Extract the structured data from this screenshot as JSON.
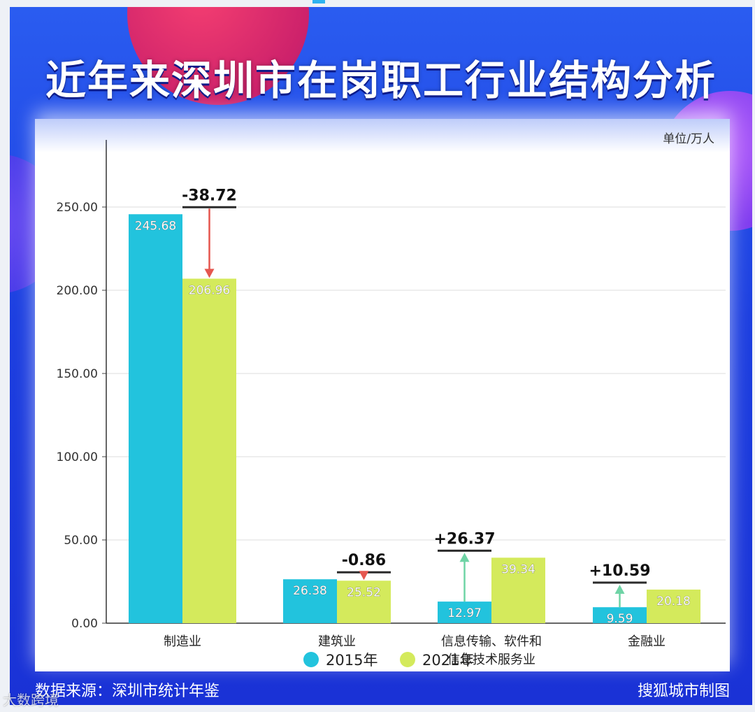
{
  "title": "近年来深圳市在岗职工行业结构分析",
  "unit_label": "单位/万人",
  "footer": {
    "source": "数据来源：深圳市统计年鉴",
    "credit": "搜狐城市制图",
    "watermark": "大数跨境"
  },
  "colors": {
    "series_2015": "#22c3dd",
    "series_2021": "#d4ea5c",
    "decrease_arrow": "#e5574f",
    "increase_arrow": "#6fd4a6",
    "background": "#1d3fe0"
  },
  "chart_data": {
    "type": "bar",
    "categories": [
      "制造业",
      "建筑业",
      "信息传输、软件和\n信息技术服务业",
      "金融业"
    ],
    "series": [
      {
        "name": "2015年",
        "values": [
          245.68,
          26.38,
          12.97,
          9.59
        ],
        "labels": [
          "245.68",
          "26.38",
          "12.97",
          "9.59"
        ]
      },
      {
        "name": "2021年",
        "values": [
          206.96,
          25.52,
          39.34,
          20.18
        ],
        "labels": [
          "206.96",
          "25.52",
          "39.34",
          "20.18"
        ]
      }
    ],
    "changes": [
      "-38.72",
      "-0.86",
      "+26.37",
      "+10.59"
    ],
    "yticks": [
      "0.00",
      "50.00",
      "100.00",
      "150.00",
      "200.00",
      "250.00"
    ],
    "ylim": [
      0,
      250
    ],
    "grid": true,
    "legend": "bottom-center"
  }
}
